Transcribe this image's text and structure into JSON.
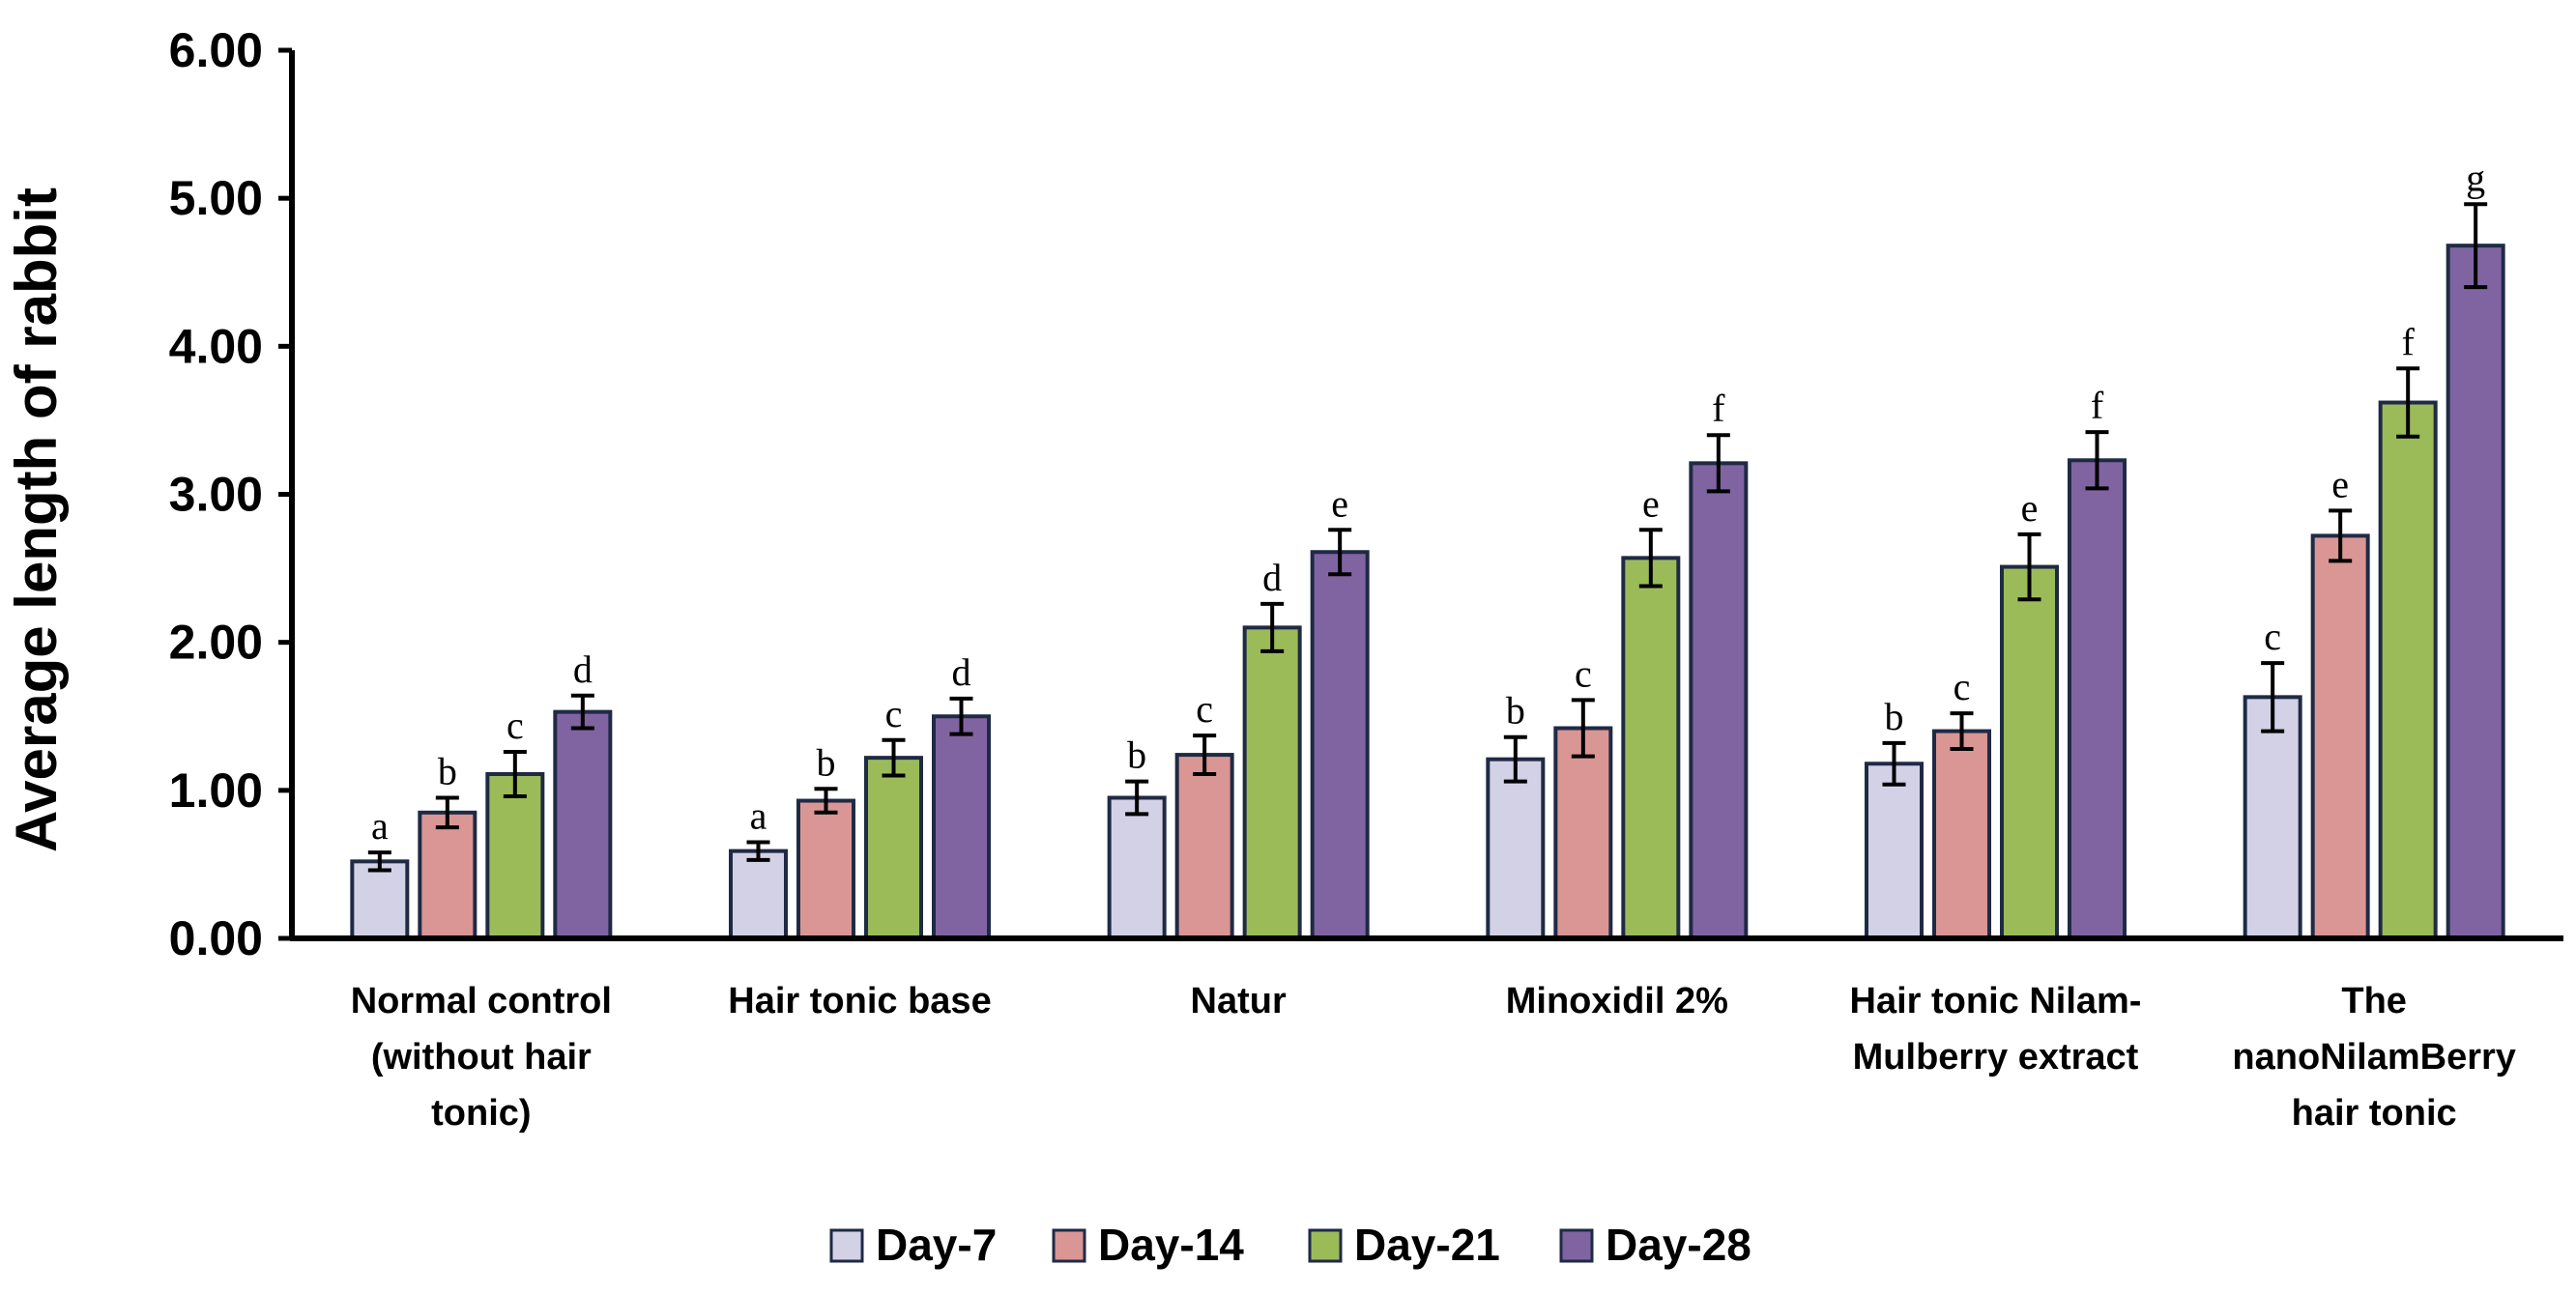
{
  "chart_data": {
    "type": "bar",
    "title": "",
    "xlabel": "",
    "ylabel": "Average length of rabbit",
    "ylim": [
      0,
      6
    ],
    "yticks": [
      "0.00",
      "1.00",
      "2.00",
      "3.00",
      "4.00",
      "5.00",
      "6.00"
    ],
    "grid": false,
    "legend_position": "bottom-center",
    "categories": [
      [
        "Normal control",
        "(without hair",
        "tonic)"
      ],
      [
        "Hair tonic base"
      ],
      [
        "Natur"
      ],
      [
        "Minoxidil 2%"
      ],
      [
        "Hair tonic Nilam-",
        "Mulberry extract"
      ],
      [
        "The",
        "nanoNilamBerry",
        "hair tonic"
      ]
    ],
    "series": [
      {
        "name": "Day-7",
        "color": "#d3d1e6",
        "values": [
          0.52,
          0.59,
          0.95,
          1.21,
          1.18,
          1.63
        ],
        "errors": [
          0.06,
          0.06,
          0.11,
          0.15,
          0.14,
          0.23
        ],
        "letters": [
          "a",
          "a",
          "b",
          "b",
          "b",
          "c"
        ]
      },
      {
        "name": "Day-14",
        "color": "#d99694",
        "values": [
          0.85,
          0.93,
          1.24,
          1.42,
          1.4,
          2.72
        ],
        "errors": [
          0.1,
          0.08,
          0.13,
          0.19,
          0.12,
          0.17
        ],
        "letters": [
          "b",
          "b",
          "c",
          "c",
          "c",
          "e"
        ]
      },
      {
        "name": "Day-21",
        "color": "#9bbb59",
        "values": [
          1.11,
          1.22,
          2.1,
          2.57,
          2.51,
          3.62
        ],
        "errors": [
          0.15,
          0.12,
          0.16,
          0.19,
          0.22,
          0.23
        ],
        "letters": [
          "c",
          "c",
          "d",
          "e",
          "e",
          "f"
        ]
      },
      {
        "name": "Day-28",
        "color": "#8064a2",
        "values": [
          1.53,
          1.5,
          2.61,
          3.21,
          3.23,
          4.68
        ],
        "errors": [
          0.11,
          0.12,
          0.15,
          0.19,
          0.19,
          0.28
        ],
        "letters": [
          "d",
          "d",
          "e",
          "f",
          "f",
          "g"
        ]
      }
    ]
  }
}
